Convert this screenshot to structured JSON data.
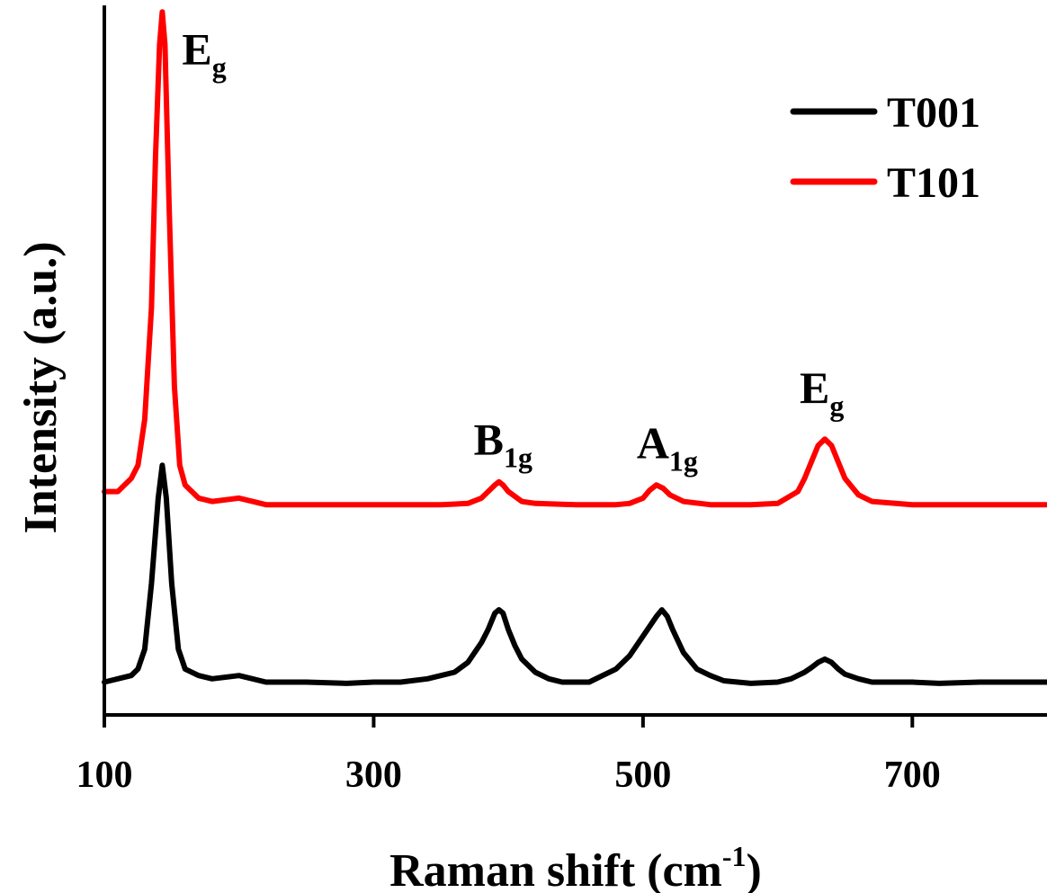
{
  "chart_data": {
    "type": "line",
    "xlabel": "Raman shift (cm",
    "xlabel_sup": "-1",
    "xlabel_close": ")",
    "ylabel": "Intensity (a.u.)",
    "xlim": [
      100,
      800
    ],
    "ylim": [
      0,
      1.08
    ],
    "x_ticks": [
      100,
      300,
      500,
      700
    ],
    "y_ticks_labeled": false,
    "legend": {
      "placement": "top-right"
    },
    "series": [
      {
        "name": "T001",
        "color": "#000000",
        "x": [
          100,
          110,
          120,
          125,
          130,
          135,
          140,
          143,
          146,
          150,
          155,
          160,
          170,
          180,
          200,
          220,
          250,
          280,
          300,
          320,
          340,
          360,
          370,
          380,
          385,
          390,
          393,
          396,
          400,
          405,
          410,
          420,
          430,
          440,
          460,
          470,
          480,
          490,
          495,
          500,
          505,
          510,
          514,
          518,
          522,
          530,
          540,
          550,
          560,
          580,
          600,
          610,
          620,
          625,
          630,
          635,
          640,
          645,
          650,
          660,
          670,
          680,
          700,
          720,
          750,
          780,
          800
        ],
        "y": [
          0.05,
          0.055,
          0.06,
          0.07,
          0.1,
          0.2,
          0.33,
          0.38,
          0.33,
          0.2,
          0.1,
          0.07,
          0.06,
          0.055,
          0.06,
          0.05,
          0.05,
          0.048,
          0.05,
          0.05,
          0.055,
          0.065,
          0.08,
          0.11,
          0.13,
          0.155,
          0.16,
          0.155,
          0.13,
          0.105,
          0.085,
          0.065,
          0.055,
          0.05,
          0.05,
          0.06,
          0.07,
          0.09,
          0.105,
          0.12,
          0.135,
          0.15,
          0.16,
          0.15,
          0.13,
          0.095,
          0.07,
          0.06,
          0.052,
          0.048,
          0.05,
          0.055,
          0.065,
          0.072,
          0.08,
          0.085,
          0.08,
          0.07,
          0.062,
          0.055,
          0.05,
          0.05,
          0.05,
          0.048,
          0.05,
          0.05,
          0.05
        ]
      },
      {
        "name": "T101",
        "color": "#ff0000",
        "x": [
          100,
          110,
          120,
          125,
          130,
          135,
          138,
          141,
          143,
          145,
          148,
          152,
          156,
          160,
          170,
          180,
          200,
          220,
          250,
          300,
          350,
          370,
          380,
          385,
          390,
          393,
          396,
          400,
          410,
          420,
          450,
          480,
          490,
          500,
          505,
          510,
          515,
          520,
          530,
          550,
          580,
          600,
          615,
          620,
          625,
          630,
          635,
          640,
          645,
          650,
          660,
          670,
          700,
          750,
          800
        ],
        "y": [
          0.34,
          0.34,
          0.36,
          0.38,
          0.45,
          0.62,
          0.85,
          1.02,
          1.07,
          1.02,
          0.78,
          0.5,
          0.38,
          0.35,
          0.33,
          0.325,
          0.33,
          0.32,
          0.32,
          0.32,
          0.32,
          0.322,
          0.33,
          0.34,
          0.35,
          0.355,
          0.35,
          0.34,
          0.325,
          0.322,
          0.32,
          0.32,
          0.322,
          0.33,
          0.342,
          0.35,
          0.345,
          0.335,
          0.325,
          0.32,
          0.32,
          0.322,
          0.34,
          0.36,
          0.385,
          0.41,
          0.42,
          0.41,
          0.385,
          0.36,
          0.335,
          0.325,
          0.32,
          0.32,
          0.32
        ]
      }
    ],
    "annotations": [
      {
        "main": "E",
        "sub": "g",
        "x": 143
      },
      {
        "main": "B",
        "sub": "1g",
        "x": 393
      },
      {
        "main": "A",
        "sub": "1g",
        "x": 514
      },
      {
        "main": "E",
        "sub": "g",
        "x": 635
      }
    ]
  }
}
